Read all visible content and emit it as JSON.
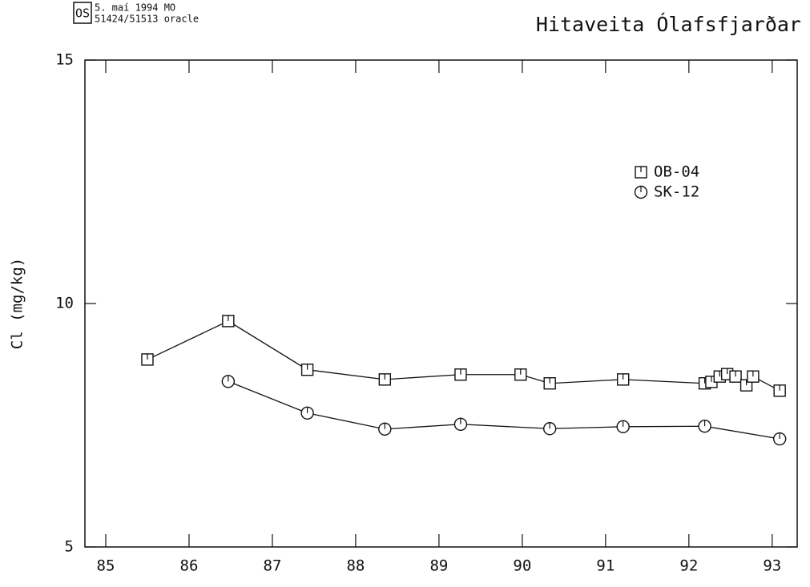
{
  "header": {
    "logo": "OS",
    "date": "5. maí 1994 MO",
    "id": "51424/51513 oracle"
  },
  "chart_data": {
    "type": "line",
    "title": "Hitaveita Ólafsfjarðar",
    "y_label": "Cl (mg/kg)",
    "xlim": [
      84.75,
      93.3
    ],
    "xticks": [
      85,
      86,
      87,
      88,
      89,
      90,
      91,
      92,
      93
    ],
    "ylim": [
      5,
      15
    ],
    "yticks": [
      5,
      10,
      15
    ],
    "legend": "upper right",
    "series": [
      {
        "name": "OB-04",
        "color": "#111111",
        "marker": "square",
        "x": [
          85.5,
          86.47,
          87.42,
          88.35,
          89.26,
          89.98,
          90.33,
          91.21,
          92.19,
          92.27,
          92.37,
          92.46,
          92.56,
          92.69,
          92.77,
          93.09
        ],
        "values": [
          8.85,
          9.64,
          8.64,
          8.44,
          8.54,
          8.54,
          8.36,
          8.44,
          8.36,
          8.39,
          8.5,
          8.55,
          8.5,
          8.32,
          8.5,
          8.21
        ]
      },
      {
        "name": "SK-12",
        "color": "#111111",
        "marker": "circle",
        "x": [
          86.47,
          87.42,
          88.35,
          89.26,
          90.33,
          91.21,
          92.19,
          93.09
        ],
        "values": [
          8.4,
          7.75,
          7.42,
          7.52,
          7.43,
          7.47,
          7.48,
          7.22
        ]
      }
    ]
  }
}
